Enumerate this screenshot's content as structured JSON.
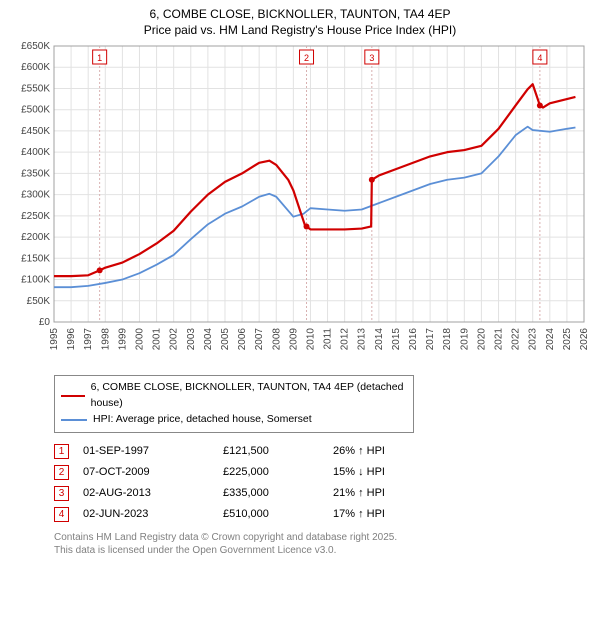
{
  "title": {
    "line1": "6, COMBE CLOSE, BICKNOLLER, TAUNTON, TA4 4EP",
    "line2": "Price paid vs. HM Land Registry's House Price Index (HPI)"
  },
  "chart": {
    "type": "line",
    "background_color": "#ffffff",
    "grid_color": "#e2e2e2",
    "axis_color": "#a0a0a0",
    "tick_font_size": 10,
    "x": {
      "min": 1995,
      "max": 2026,
      "tick_step": 1,
      "labels": [
        "1995",
        "1996",
        "1997",
        "1998",
        "1999",
        "2000",
        "2001",
        "2002",
        "2003",
        "2004",
        "2005",
        "2006",
        "2007",
        "2008",
        "2009",
        "2010",
        "2011",
        "2012",
        "2013",
        "2014",
        "2015",
        "2016",
        "2017",
        "2018",
        "2019",
        "2020",
        "2021",
        "2022",
        "2023",
        "2024",
        "2025",
        "2026"
      ]
    },
    "y": {
      "min": 0,
      "max": 650000,
      "tick_step": 50000,
      "labels": [
        "£0",
        "£50K",
        "£100K",
        "£150K",
        "£200K",
        "£250K",
        "£300K",
        "£350K",
        "£400K",
        "£450K",
        "£500K",
        "£550K",
        "£600K",
        "£650K"
      ]
    },
    "series": [
      {
        "id": "price_paid",
        "label": "6, COMBE CLOSE, BICKNOLLER, TAUNTON, TA4 4EP (detached house)",
        "color": "#d00000",
        "line_width": 2.2,
        "data": [
          [
            1995.0,
            108000
          ],
          [
            1996.0,
            108000
          ],
          [
            1997.0,
            110000
          ],
          [
            1997.67,
            121500
          ],
          [
            1998.0,
            128000
          ],
          [
            1999.0,
            140000
          ],
          [
            2000.0,
            160000
          ],
          [
            2001.0,
            185000
          ],
          [
            2002.0,
            215000
          ],
          [
            2003.0,
            260000
          ],
          [
            2004.0,
            300000
          ],
          [
            2005.0,
            330000
          ],
          [
            2006.0,
            350000
          ],
          [
            2007.0,
            375000
          ],
          [
            2007.6,
            380000
          ],
          [
            2008.0,
            370000
          ],
          [
            2008.7,
            335000
          ],
          [
            2009.0,
            310000
          ],
          [
            2009.7,
            225000
          ],
          [
            2009.77,
            225000
          ],
          [
            2010.0,
            218000
          ],
          [
            2011.0,
            218000
          ],
          [
            2012.0,
            218000
          ],
          [
            2013.0,
            220000
          ],
          [
            2013.55,
            225000
          ],
          [
            2013.59,
            335000
          ],
          [
            2014.0,
            345000
          ],
          [
            2015.0,
            360000
          ],
          [
            2016.0,
            375000
          ],
          [
            2017.0,
            390000
          ],
          [
            2018.0,
            400000
          ],
          [
            2019.0,
            405000
          ],
          [
            2020.0,
            415000
          ],
          [
            2021.0,
            455000
          ],
          [
            2022.0,
            510000
          ],
          [
            2022.7,
            548000
          ],
          [
            2023.0,
            560000
          ],
          [
            2023.42,
            510000
          ],
          [
            2023.6,
            505000
          ],
          [
            2024.0,
            515000
          ],
          [
            2025.0,
            525000
          ],
          [
            2025.5,
            530000
          ]
        ]
      },
      {
        "id": "hpi",
        "label": "HPI: Average price, detached house, Somerset",
        "color": "#5b8fd6",
        "line_width": 1.8,
        "data": [
          [
            1995.0,
            82000
          ],
          [
            1996.0,
            82000
          ],
          [
            1997.0,
            85000
          ],
          [
            1998.0,
            92000
          ],
          [
            1999.0,
            100000
          ],
          [
            2000.0,
            115000
          ],
          [
            2001.0,
            135000
          ],
          [
            2002.0,
            158000
          ],
          [
            2003.0,
            195000
          ],
          [
            2004.0,
            230000
          ],
          [
            2005.0,
            255000
          ],
          [
            2006.0,
            272000
          ],
          [
            2007.0,
            295000
          ],
          [
            2007.6,
            302000
          ],
          [
            2008.0,
            295000
          ],
          [
            2009.0,
            248000
          ],
          [
            2009.6,
            255000
          ],
          [
            2010.0,
            268000
          ],
          [
            2011.0,
            265000
          ],
          [
            2012.0,
            262000
          ],
          [
            2013.0,
            265000
          ],
          [
            2014.0,
            280000
          ],
          [
            2015.0,
            295000
          ],
          [
            2016.0,
            310000
          ],
          [
            2017.0,
            325000
          ],
          [
            2018.0,
            335000
          ],
          [
            2019.0,
            340000
          ],
          [
            2020.0,
            350000
          ],
          [
            2021.0,
            390000
          ],
          [
            2022.0,
            440000
          ],
          [
            2022.7,
            460000
          ],
          [
            2023.0,
            452000
          ],
          [
            2024.0,
            448000
          ],
          [
            2025.0,
            455000
          ],
          [
            2025.5,
            458000
          ]
        ]
      }
    ],
    "event_markers": [
      {
        "num": "1",
        "year": 1997.67,
        "value": 121500
      },
      {
        "num": "2",
        "year": 2009.77,
        "value": 225000
      },
      {
        "num": "3",
        "year": 2013.59,
        "value": 335000
      },
      {
        "num": "4",
        "year": 2023.42,
        "value": 510000
      }
    ],
    "marker_box": {
      "stroke": "#d00000",
      "size": 14,
      "font_size": 9
    },
    "marker_line": {
      "stroke": "#d8b0b0",
      "dash": "2,2"
    },
    "point_marker": {
      "fill": "#d00000",
      "radius": 3
    }
  },
  "legend": {
    "items": [
      {
        "color": "#d00000",
        "label": "6, COMBE CLOSE, BICKNOLLER, TAUNTON, TA4 4EP (detached house)"
      },
      {
        "color": "#5b8fd6",
        "label": "HPI: Average price, detached house, Somerset"
      }
    ]
  },
  "events_table": {
    "rows": [
      {
        "num": "1",
        "date": "01-SEP-1997",
        "price": "£121,500",
        "pct": "26% ↑ HPI"
      },
      {
        "num": "2",
        "date": "07-OCT-2009",
        "price": "£225,000",
        "pct": "15% ↓ HPI"
      },
      {
        "num": "3",
        "date": "02-AUG-2013",
        "price": "£335,000",
        "pct": "21% ↑ HPI"
      },
      {
        "num": "4",
        "date": "02-JUN-2023",
        "price": "£510,000",
        "pct": "17% ↑ HPI"
      }
    ]
  },
  "footer": {
    "line1": "Contains HM Land Registry data © Crown copyright and database right 2025.",
    "line2": "This data is licensed under the Open Government Licence v3.0."
  }
}
